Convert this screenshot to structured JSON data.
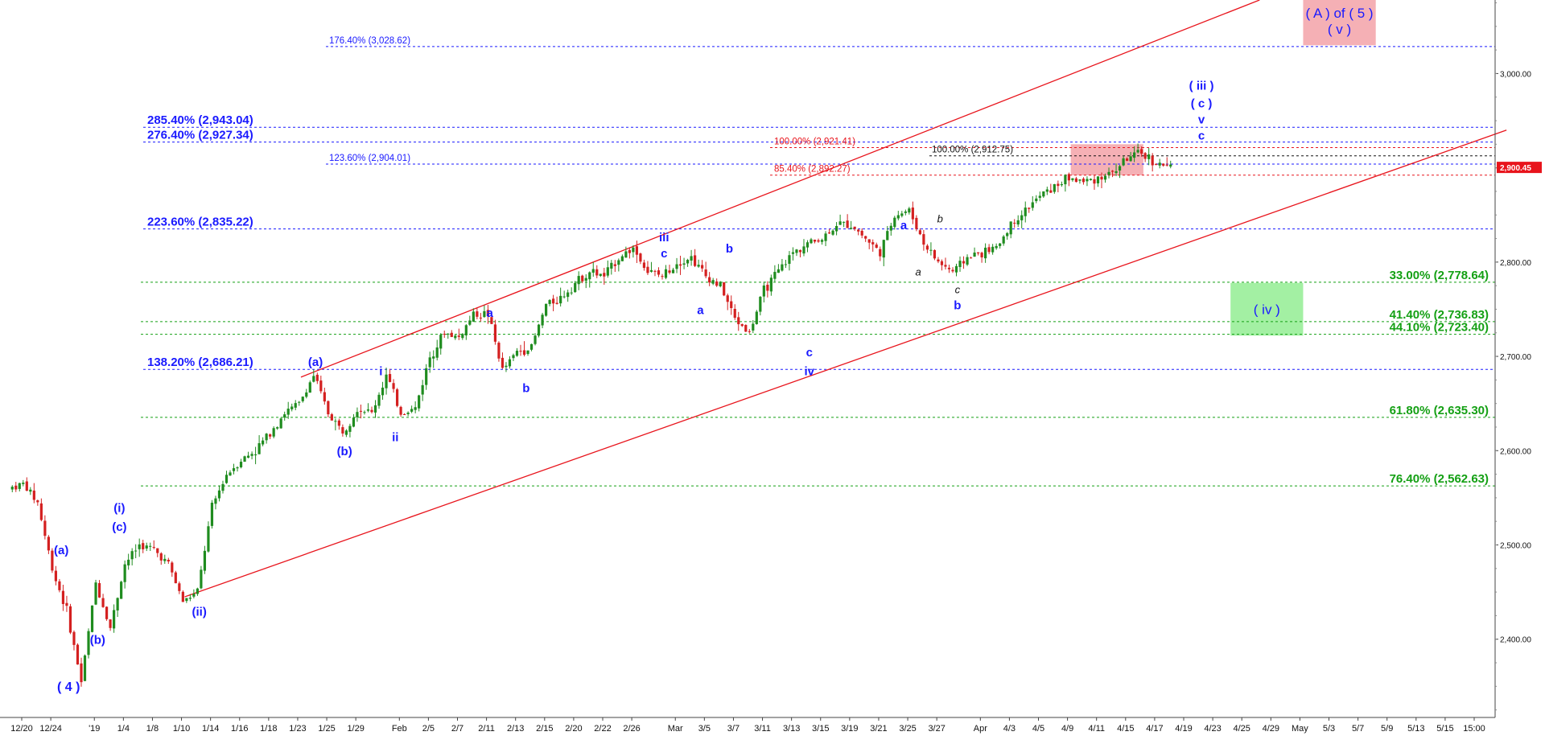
{
  "chart_data": {
    "type": "candlestick",
    "price_axis": {
      "ticks": [
        "3,000.00",
        "2,900.00",
        "2,800.00",
        "2,700.00",
        "2,600.00",
        "2,500.00",
        "2,400.00"
      ],
      "tick_values": [
        3000,
        2900,
        2800,
        2700,
        2600,
        2500,
        2400
      ],
      "ylim": [
        2317,
        3078
      ]
    },
    "current_price": {
      "value": 2900.45,
      "label": "2,900.45"
    },
    "date_axis": {
      "ticks": [
        "12/20",
        "12/24",
        "'19",
        "1/4",
        "1/8",
        "1/10",
        "1/14",
        "1/16",
        "1/18",
        "1/23",
        "1/25",
        "1/29",
        "Feb",
        "2/5",
        "2/7",
        "2/11",
        "2/13",
        "2/15",
        "2/20",
        "2/22",
        "2/26",
        "Mar",
        "3/5",
        "3/7",
        "3/11",
        "3/13",
        "3/15",
        "3/19",
        "3/21",
        "3/25",
        "3/27",
        "Apr",
        "4/3",
        "4/5",
        "4/9",
        "4/11",
        "4/15",
        "4/17",
        "4/19",
        "4/23",
        "4/25",
        "4/29",
        "May",
        "5/3",
        "5/7",
        "5/9",
        "5/13",
        "5/15",
        "15:00"
      ],
      "bar_index": [
        0,
        2,
        5,
        7,
        9,
        11,
        13,
        15,
        17,
        19,
        21,
        23,
        26,
        28,
        30,
        32,
        34,
        36,
        38,
        40,
        42,
        45,
        47,
        49,
        51,
        53,
        55,
        57,
        59,
        61,
        63,
        66,
        68,
        70,
        72,
        74,
        76,
        78,
        80,
        82,
        84,
        86,
        88,
        90,
        92,
        94,
        96,
        98,
        100
      ]
    },
    "price_path": [
      [
        0,
        2560
      ],
      [
        1,
        2565
      ],
      [
        2,
        2545
      ],
      [
        3,
        2475
      ],
      [
        4,
        2430
      ],
      [
        5,
        2355
      ],
      [
        6,
        2460
      ],
      [
        7,
        2412
      ],
      [
        8,
        2480
      ],
      [
        9,
        2500
      ],
      [
        10,
        2495
      ],
      [
        11,
        2480
      ],
      [
        12,
        2440
      ],
      [
        13,
        2450
      ],
      [
        14,
        2540
      ],
      [
        15,
        2575
      ],
      [
        16,
        2590
      ],
      [
        17,
        2600
      ],
      [
        18,
        2620
      ],
      [
        19,
        2640
      ],
      [
        20,
        2650
      ],
      [
        21,
        2680
      ],
      [
        22,
        2640
      ],
      [
        23,
        2620
      ],
      [
        24,
        2645
      ],
      [
        25,
        2640
      ],
      [
        26,
        2680
      ],
      [
        27,
        2640
      ],
      [
        28,
        2645
      ],
      [
        29,
        2700
      ],
      [
        30,
        2725
      ],
      [
        31,
        2720
      ],
      [
        32,
        2745
      ],
      [
        33,
        2745
      ],
      [
        34,
        2685
      ],
      [
        35,
        2705
      ],
      [
        36,
        2710
      ],
      [
        37,
        2755
      ],
      [
        38,
        2762
      ],
      [
        39,
        2778
      ],
      [
        40,
        2790
      ],
      [
        41,
        2785
      ],
      [
        42,
        2805
      ],
      [
        43,
        2815
      ],
      [
        44,
        2790
      ],
      [
        45,
        2785
      ],
      [
        46,
        2800
      ],
      [
        47,
        2805
      ],
      [
        48,
        2785
      ],
      [
        49,
        2775
      ],
      [
        50,
        2740
      ],
      [
        51,
        2725
      ],
      [
        52,
        2770
      ],
      [
        53,
        2790
      ],
      [
        54,
        2810
      ],
      [
        55,
        2820
      ],
      [
        56,
        2825
      ],
      [
        57,
        2840
      ],
      [
        58,
        2840
      ],
      [
        59,
        2825
      ],
      [
        60,
        2810
      ],
      [
        61,
        2850
      ],
      [
        62,
        2855
      ],
      [
        63,
        2820
      ],
      [
        64,
        2800
      ],
      [
        65,
        2790
      ],
      [
        66,
        2805
      ],
      [
        67,
        2810
      ],
      [
        68,
        2815
      ],
      [
        69,
        2840
      ],
      [
        70,
        2855
      ],
      [
        71,
        2870
      ],
      [
        72,
        2880
      ],
      [
        73,
        2890
      ],
      [
        74,
        2885
      ],
      [
        75,
        2890
      ],
      [
        76,
        2895
      ],
      [
        77,
        2910
      ],
      [
        78,
        2915
      ],
      [
        79,
        2905
      ],
      [
        80,
        2900
      ]
    ],
    "fib_levels_blue": [
      {
        "label": "176.40% (3,028.62)",
        "value": 3028.62,
        "large": false
      },
      {
        "label": "285.40% (2,943.04)",
        "value": 2943.04,
        "large": true
      },
      {
        "label": "276.40% (2,927.34)",
        "value": 2927.34,
        "large": true
      },
      {
        "label": "123.60% (2,904.01)",
        "value": 2904.01,
        "large": false
      },
      {
        "label": "223.60% (2,835.22)",
        "value": 2835.22,
        "large": true
      },
      {
        "label": "138.20% (2,686.21)",
        "value": 2686.21,
        "large": true
      }
    ],
    "fib_levels_red": [
      {
        "label": "100.00% (2,921.41)",
        "value": 2921.41
      },
      {
        "label": "85.40% (2,892.27)",
        "value": 2892.27
      }
    ],
    "fib_levels_black": [
      {
        "label": "100.00% (2,912.75)",
        "value": 2912.75
      }
    ],
    "fib_levels_green": [
      {
        "label": "33.00% (2,778.64)",
        "value": 2778.64
      },
      {
        "label": "41.40% (2,736.83)",
        "value": 2736.83
      },
      {
        "label": "44.10% (2,723.40)",
        "value": 2723.4
      },
      {
        "label": "61.80% (2,635.30)",
        "value": 2635.3
      },
      {
        "label": "76.40% (2,562.63)",
        "value": 2562.63
      }
    ],
    "channel_lines": [
      {
        "from": [
          20,
          2678
        ],
        "to": [
          86,
          3078
        ]
      },
      {
        "from": [
          12,
          2445
        ],
        "to": [
          103,
          2940
        ]
      }
    ],
    "zones": [
      {
        "label": "( A ) of ( 5 )",
        "label2": "( v )",
        "x": [
          89,
          94
        ],
        "y": [
          3030,
          3078
        ],
        "color": "#f4a7ad"
      },
      {
        "label": "( iv )",
        "x": [
          84,
          89
        ],
        "y": [
          2722,
          2778
        ],
        "color": "#99ee99"
      },
      {
        "label": "",
        "x": [
          73,
          78
        ],
        "y": [
          2892,
          2925
        ],
        "color": "#f4a7ad"
      }
    ],
    "wave_labels": [
      {
        "text": "( 4 )",
        "bar": 4,
        "price": 2345,
        "color": "#1a1aff",
        "size": 16
      },
      {
        "text": "(a)",
        "bar": 3.5,
        "price": 2490,
        "color": "#1a1aff",
        "size": 15
      },
      {
        "text": "(b)",
        "bar": 6,
        "price": 2395,
        "color": "#1a1aff",
        "size": 15
      },
      {
        "text": "(i)",
        "bar": 7.5,
        "price": 2535,
        "color": "#1a1aff",
        "size": 15
      },
      {
        "text": "(c)",
        "bar": 7.5,
        "price": 2515,
        "color": "#1a1aff",
        "size": 15
      },
      {
        "text": "(ii)",
        "bar": 13,
        "price": 2425,
        "color": "#1a1aff",
        "size": 15
      },
      {
        "text": "(a)",
        "bar": 21,
        "price": 2690,
        "color": "#1a1aff",
        "size": 15
      },
      {
        "text": "(b)",
        "bar": 23,
        "price": 2595,
        "color": "#1a1aff",
        "size": 15
      },
      {
        "text": "i",
        "bar": 25.5,
        "price": 2680,
        "color": "#1a1aff",
        "size": 15
      },
      {
        "text": "ii",
        "bar": 26.5,
        "price": 2610,
        "color": "#1a1aff",
        "size": 15
      },
      {
        "text": "a",
        "bar": 33,
        "price": 2742,
        "color": "#1a1aff",
        "size": 15
      },
      {
        "text": "b",
        "bar": 35.5,
        "price": 2662,
        "color": "#1a1aff",
        "size": 15
      },
      {
        "text": "iii",
        "bar": 45,
        "price": 2822,
        "color": "#1a1aff",
        "size": 15
      },
      {
        "text": "c",
        "bar": 45,
        "price": 2805,
        "color": "#1a1aff",
        "size": 15
      },
      {
        "text": "b",
        "bar": 49.5,
        "price": 2810,
        "color": "#1a1aff",
        "size": 15
      },
      {
        "text": "a",
        "bar": 47.5,
        "price": 2745,
        "color": "#1a1aff",
        "size": 15
      },
      {
        "text": "c",
        "bar": 55,
        "price": 2700,
        "color": "#1a1aff",
        "size": 15
      },
      {
        "text": "iv",
        "bar": 55,
        "price": 2680,
        "color": "#1a1aff",
        "size": 15
      },
      {
        "text": "a",
        "bar": 61.5,
        "price": 2835,
        "color": "#1a1aff",
        "size": 15
      },
      {
        "text": "b",
        "bar": 64,
        "price": 2842,
        "color": "#111111",
        "size": 13,
        "italic": true
      },
      {
        "text": "a",
        "bar": 62.5,
        "price": 2786,
        "color": "#111111",
        "size": 13,
        "italic": true
      },
      {
        "text": "c",
        "bar": 65.2,
        "price": 2767,
        "color": "#111111",
        "size": 13,
        "italic": true
      },
      {
        "text": "b",
        "bar": 65.2,
        "price": 2750,
        "color": "#1a1aff",
        "size": 15
      },
      {
        "text": "( iii )",
        "bar": 82,
        "price": 2983,
        "color": "#1a1aff",
        "size": 15
      },
      {
        "text": "( c )",
        "bar": 82,
        "price": 2964,
        "color": "#1a1aff",
        "size": 15
      },
      {
        "text": "v",
        "bar": 82,
        "price": 2947,
        "color": "#1a1aff",
        "size": 15
      },
      {
        "text": "c",
        "bar": 82,
        "price": 2930,
        "color": "#1a1aff",
        "size": 15
      }
    ],
    "colors": {
      "blue": "#1a1aff",
      "red": "#e8141c",
      "green": "#14a014",
      "black": "#111111",
      "up_candle": "#1f8c1f",
      "down_candle": "#d42020",
      "channel": "#e8141c"
    },
    "grid": false,
    "legend": "none"
  }
}
